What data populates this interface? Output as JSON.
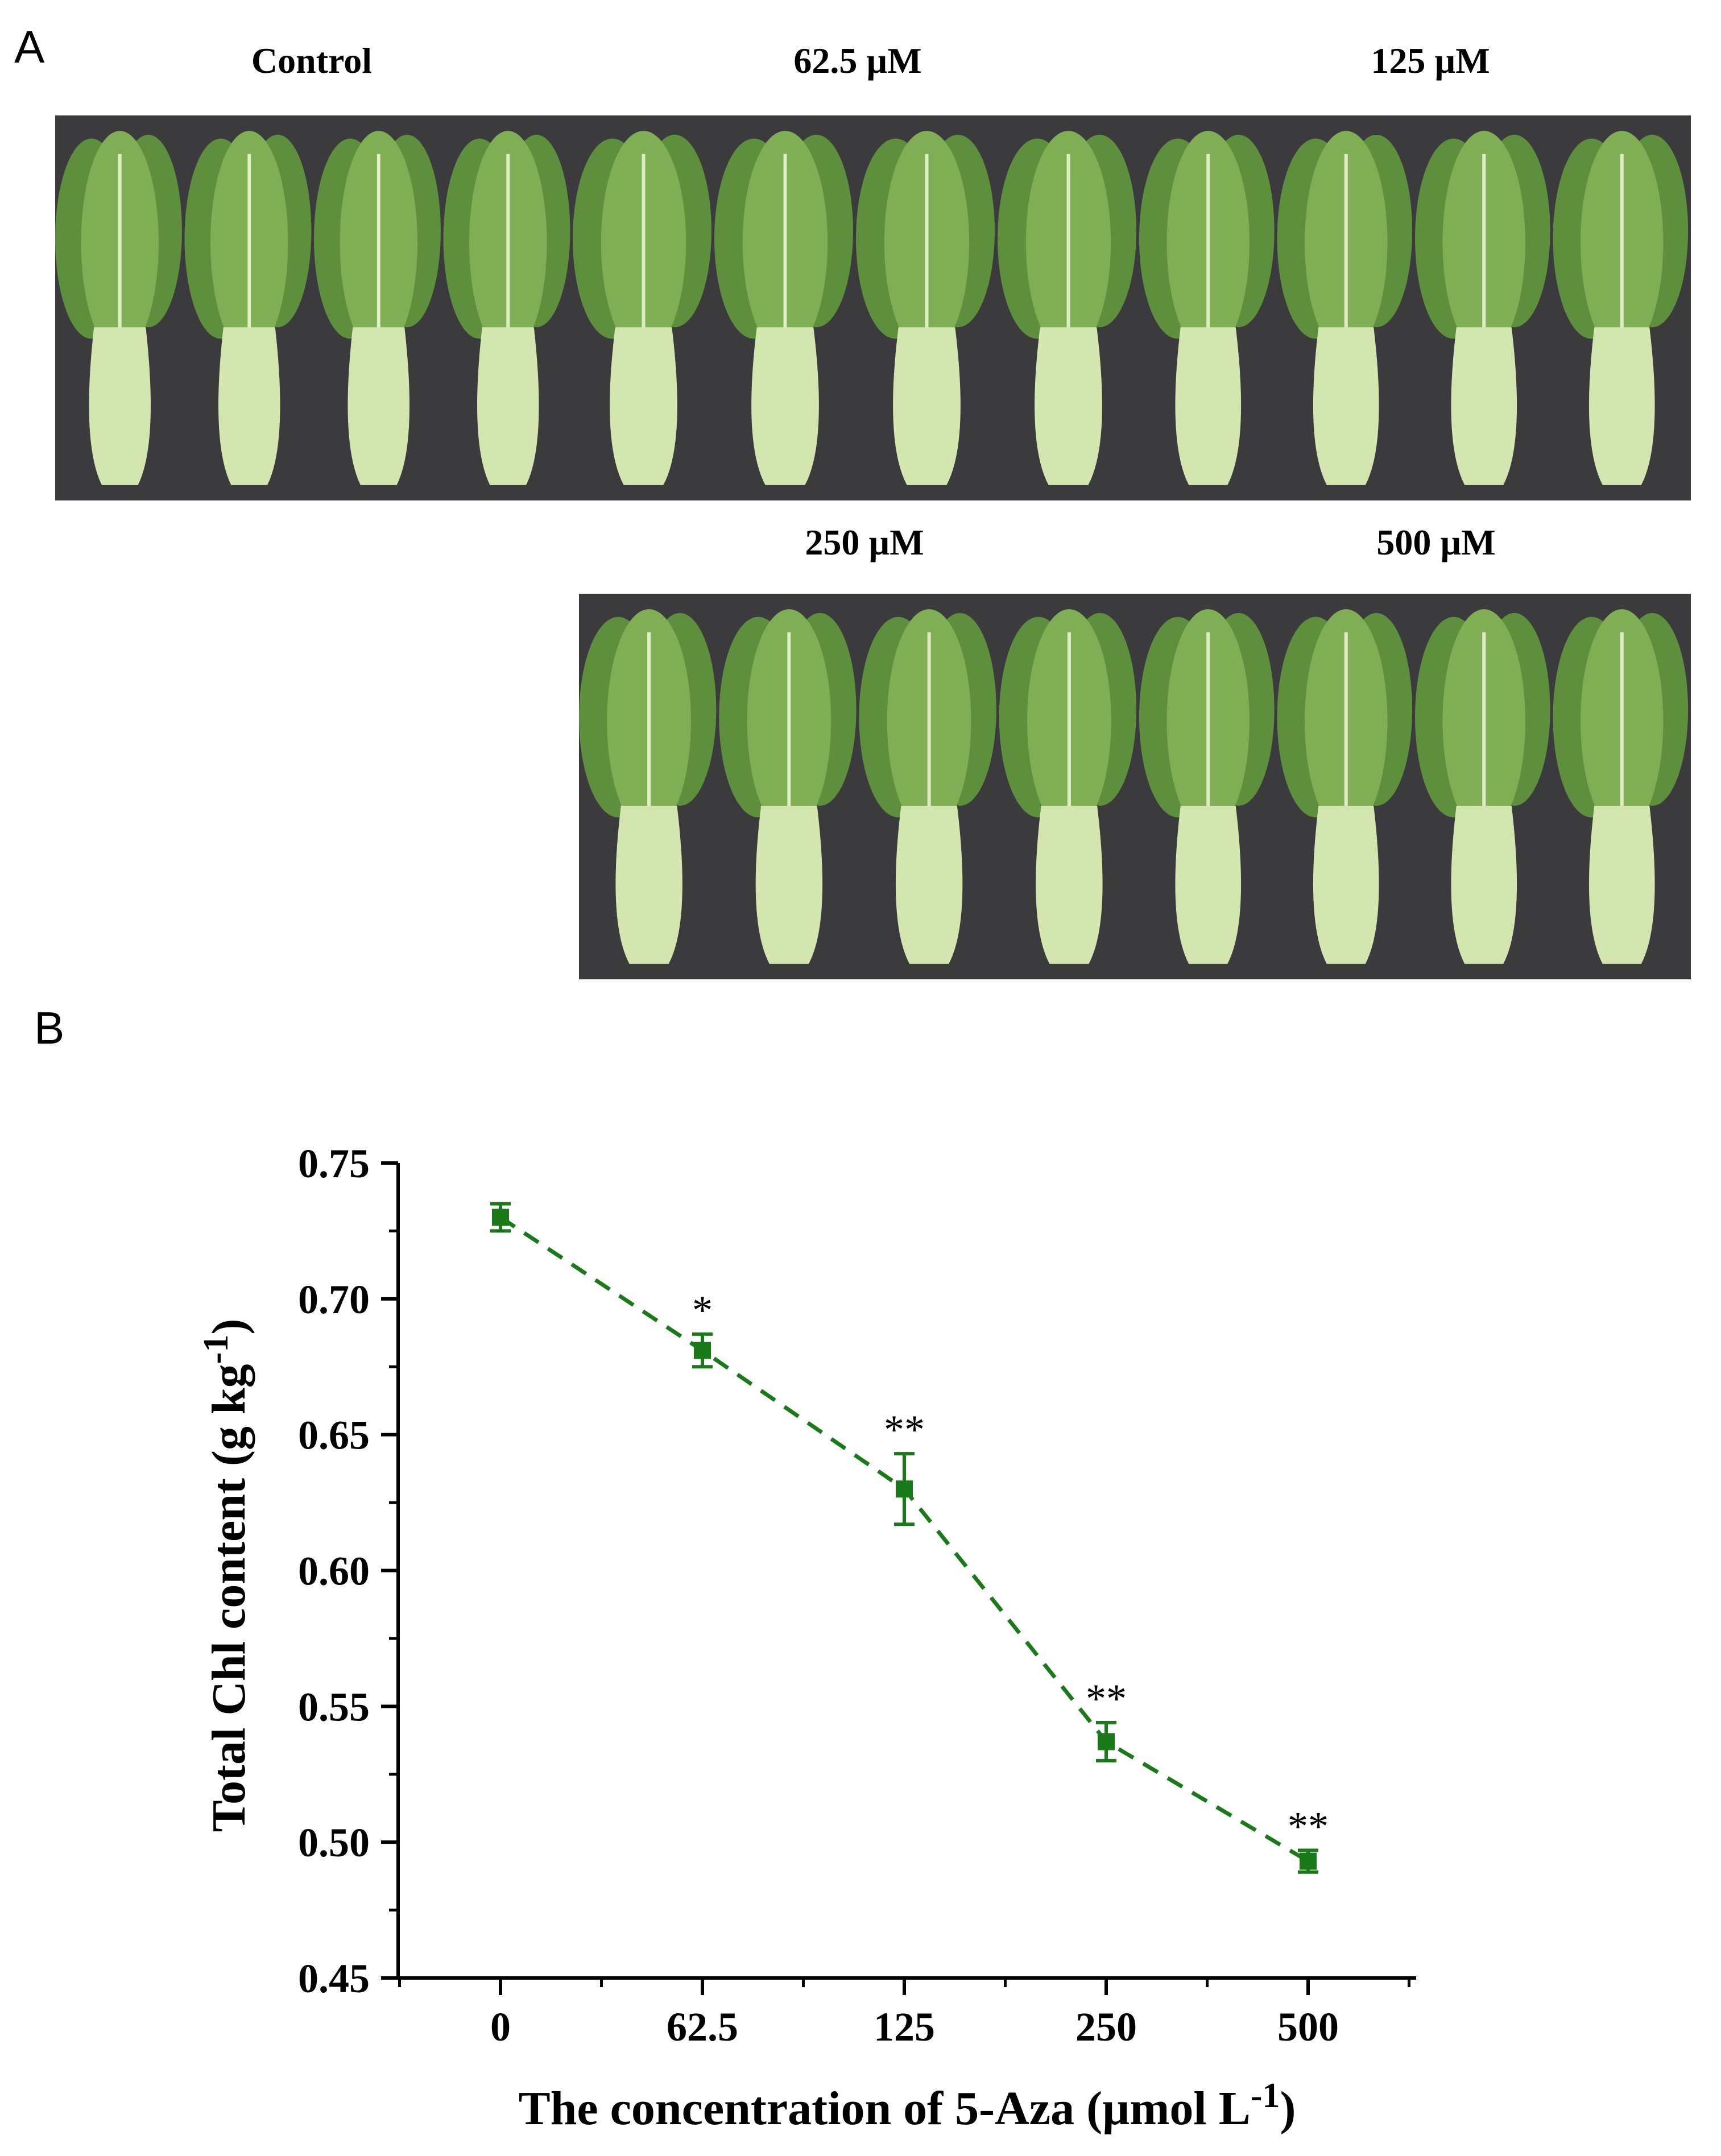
{
  "figure": {
    "panel_a_label": "A",
    "panel_b_label": "B"
  },
  "photos": [
    {
      "label": "Control",
      "plants": 4
    },
    {
      "label": "62.5 µM",
      "plants": 4
    },
    {
      "label": "125 µM",
      "plants": 4
    },
    {
      "label": "250 µM",
      "plants": 4
    },
    {
      "label": "500 µM",
      "plants": 4
    }
  ],
  "colors": {
    "series": "#1a7a1a",
    "photo_bg": "#3b3b3e",
    "leaf": "#7fae55",
    "leaf_dark": "#5e8f3c",
    "stem": "#d4e6b0"
  },
  "chart_data": {
    "type": "line",
    "title": "",
    "xlabel": "The concentration of 5-Aza (µmol L",
    "xlabel_sup": "-1",
    "xlabel_end": ")",
    "ylabel": "Total Chl content (g kg",
    "ylabel_sup": "-1",
    "ylabel_end": ")",
    "categories": [
      "0",
      "62.5",
      "125",
      "250",
      "500"
    ],
    "values": [
      0.73,
      0.681,
      0.63,
      0.537,
      0.493
    ],
    "errors": [
      0.005,
      0.006,
      0.013,
      0.007,
      0.004
    ],
    "significance": [
      "",
      "*",
      "**",
      "**",
      "**"
    ],
    "ylim": [
      0.45,
      0.75
    ],
    "yticks": [
      "0.45",
      "0.50",
      "0.55",
      "0.60",
      "0.65",
      "0.70",
      "0.75"
    ],
    "line_style": "dashed",
    "marker": "square"
  }
}
